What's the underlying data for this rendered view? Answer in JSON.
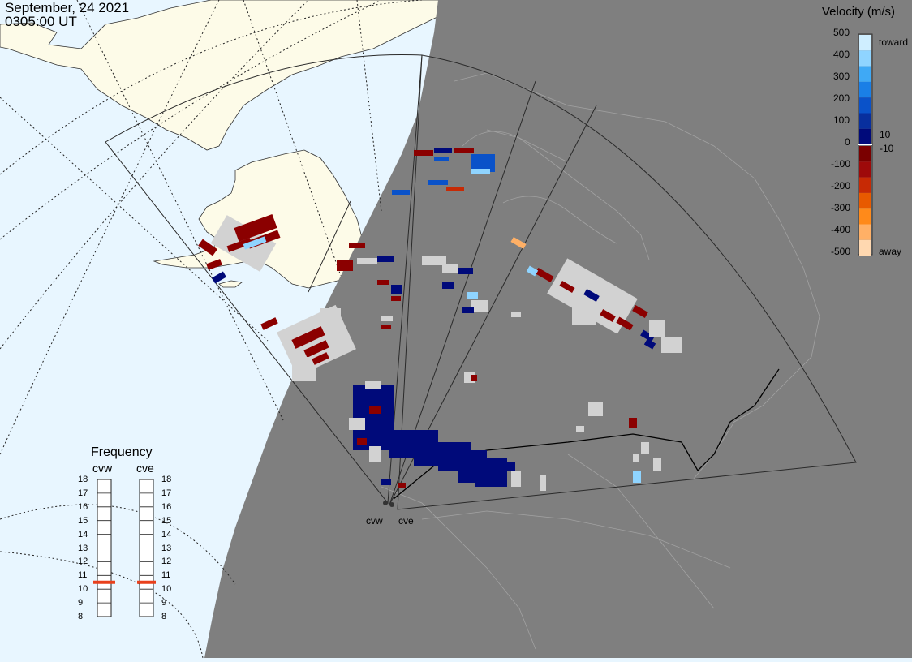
{
  "header": {
    "date": "September, 24 2021",
    "time": "0305:00 UT"
  },
  "colorbar": {
    "title": "Velocity (m/s)",
    "ticks": [
      "500",
      "400",
      "300",
      "200",
      "100",
      "10",
      "0",
      "-10",
      "-100",
      "-200",
      "-300",
      "-400",
      "-500"
    ],
    "toward_label": "toward",
    "away_label": "away",
    "colors_toward": [
      "#cfeeff",
      "#8fd4ff",
      "#3fa9f5",
      "#1a7fe6",
      "#0a52c9",
      "#082f9e",
      "#000a7a"
    ],
    "colors_away": [
      "#7a0000",
      "#9e0a0a",
      "#c72a05",
      "#e85a00",
      "#ff8a1a",
      "#ffb066",
      "#ffd8b0"
    ]
  },
  "frequency": {
    "title": "Frequency",
    "radars": [
      "cvw",
      "cve"
    ],
    "ticks": [
      "18",
      "17",
      "16",
      "15",
      "14",
      "13",
      "12",
      "11",
      "10",
      "9",
      "8"
    ],
    "current_mhz": [
      10.5,
      10.5
    ],
    "marker_color": "#e8401c"
  },
  "map": {
    "sites": [
      "cvw",
      "cve"
    ],
    "land_day_color": "#fdfbe8",
    "ocean_day_color": "#e8f6ff",
    "night_color": "#7f7f7f",
    "ground_scatter_color": "#d2d2d2"
  }
}
